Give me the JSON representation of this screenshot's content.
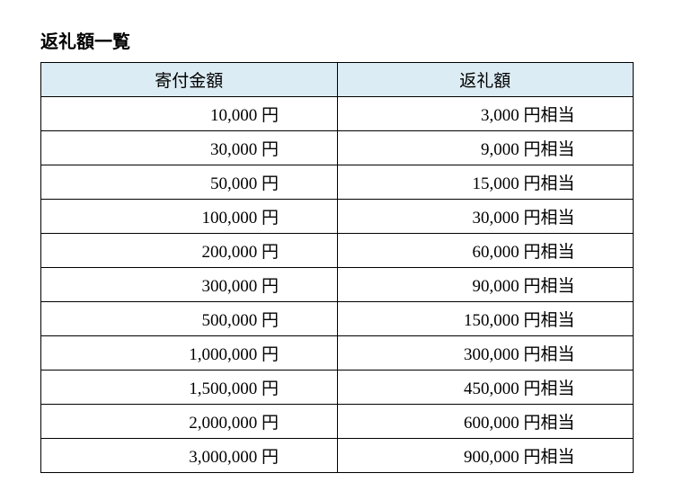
{
  "title": "返礼額一覧",
  "table": {
    "type": "table",
    "header_background_color": "#dcecf4",
    "border_color": "#000000",
    "background_color": "#ffffff",
    "font_family": "serif",
    "title_fontsize": 20,
    "cell_fontsize": 19,
    "columns": [
      {
        "label": "寄付金額",
        "width": "50%",
        "align": "center"
      },
      {
        "label": "返礼額",
        "width": "50%",
        "align": "center"
      }
    ],
    "rows": [
      [
        "10,000 円",
        "3,000 円相当"
      ],
      [
        "30,000 円",
        "9,000 円相当"
      ],
      [
        "50,000 円",
        "15,000 円相当"
      ],
      [
        "100,000 円",
        "30,000 円相当"
      ],
      [
        "200,000 円",
        "60,000 円相当"
      ],
      [
        "300,000 円",
        "90,000 円相当"
      ],
      [
        "500,000 円",
        "150,000 円相当"
      ],
      [
        "1,000,000 円",
        "300,000 円相当"
      ],
      [
        "1,500,000 円",
        "450,000 円相当"
      ],
      [
        "2,000,000 円",
        "600,000 円相当"
      ],
      [
        "3,000,000 円",
        "900,000 円相当"
      ]
    ]
  }
}
